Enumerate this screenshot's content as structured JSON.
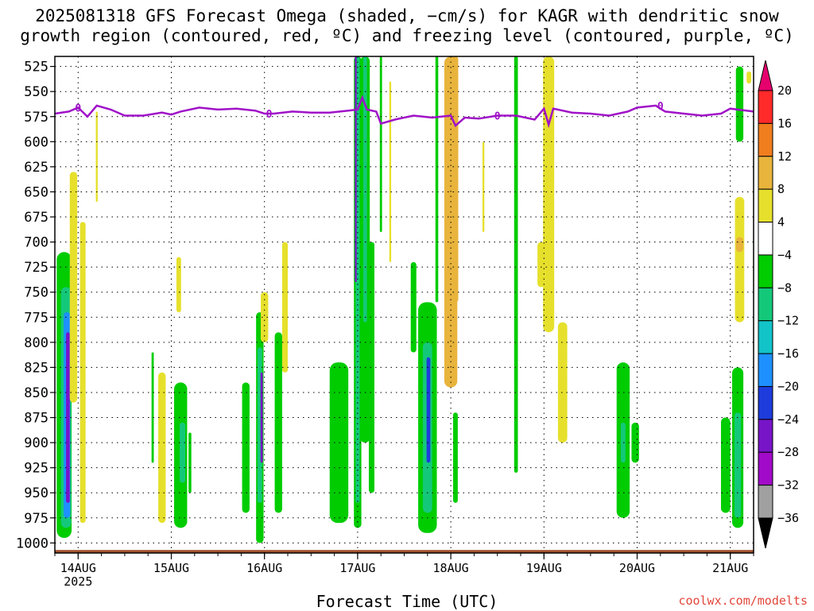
{
  "chart_data": {
    "type": "heatmap",
    "title": "2025081318 GFS Forecast Omega (shaded, −cm/s) for KAGR with dendritic snow\ngrowth region (contoured, red, ºC) and freezing level (contoured, purple, ºC)",
    "xlabel": "Forecast Time (UTC)",
    "ylabel": "",
    "credit": "coolwx.com/modelts",
    "x_ticks": [
      "14AUG",
      "15AUG",
      "16AUG",
      "17AUG",
      "18AUG",
      "19AUG",
      "20AUG",
      "21AUG"
    ],
    "x_tick_year": "2025",
    "x_range_days": [
      13.75,
      21.25
    ],
    "y_ticks": [
      525,
      550,
      575,
      600,
      625,
      650,
      675,
      700,
      725,
      750,
      775,
      800,
      825,
      850,
      875,
      900,
      925,
      950,
      975,
      1000
    ],
    "ylim": [
      1010,
      515
    ],
    "colorbar": {
      "labels": [
        "20",
        "16",
        "12",
        "8",
        "4",
        "−4",
        "−8",
        "−12",
        "−16",
        "−20",
        "−24",
        "−28",
        "−32",
        "−36"
      ],
      "colors": [
        "#ff2a2a",
        "#f07d1e",
        "#e8b43c",
        "#e6e02c",
        "#ffffff",
        "#00cc00",
        "#14c87a",
        "#12c3c8",
        "#1e90ff",
        "#1e3cdc",
        "#7814c8",
        "#a00ac8",
        "#a0a0a0"
      ],
      "top_arrow_color": "#e6006e",
      "bottom_arrow_color": "#000000"
    },
    "freezing_level_label": "0",
    "freezing_level": {
      "x": [
        13.75,
        13.9,
        14.0,
        14.1,
        14.2,
        14.35,
        14.5,
        14.7,
        14.9,
        15.0,
        15.1,
        15.3,
        15.5,
        15.7,
        15.9,
        16.0,
        16.1,
        16.3,
        16.5,
        16.7,
        16.9,
        17.0,
        17.05,
        17.1,
        17.2,
        17.25,
        17.4,
        17.6,
        17.8,
        18.0,
        18.05,
        18.15,
        18.3,
        18.5,
        18.7,
        18.9,
        19.0,
        19.05,
        19.1,
        19.3,
        19.5,
        19.7,
        19.9,
        20.0,
        20.2,
        20.3,
        20.5,
        20.7,
        20.9,
        21.0,
        21.25
      ],
      "y": [
        572,
        570,
        566,
        575,
        564,
        568,
        574,
        574,
        571,
        573,
        570,
        566,
        568,
        567,
        569,
        572,
        572,
        570,
        571,
        571,
        569,
        568,
        556,
        568,
        570,
        582,
        578,
        574,
        576,
        574,
        584,
        576,
        577,
        574,
        574,
        578,
        567,
        583,
        567,
        571,
        572,
        574,
        570,
        566,
        564,
        570,
        572,
        574,
        572,
        567,
        570
      ]
    },
    "omega_features": [
      {
        "day": 13.85,
        "p_top": 710,
        "p_bot": 995,
        "half_width_days": 0.08,
        "value": -8
      },
      {
        "day": 13.87,
        "p_top": 745,
        "p_bot": 985,
        "half_width_days": 0.055,
        "value": -12
      },
      {
        "day": 13.88,
        "p_top": 770,
        "p_bot": 975,
        "half_width_days": 0.035,
        "value": -16
      },
      {
        "day": 13.89,
        "p_top": 790,
        "p_bot": 960,
        "half_width_days": 0.02,
        "value": -28
      },
      {
        "day": 13.95,
        "p_top": 630,
        "p_bot": 860,
        "half_width_days": 0.04,
        "value": 4
      },
      {
        "day": 14.05,
        "p_top": 680,
        "p_bot": 980,
        "half_width_days": 0.03,
        "value": 4
      },
      {
        "day": 14.2,
        "p_top": 570,
        "p_bot": 660,
        "half_width_days": 0.01,
        "value": 4
      },
      {
        "day": 14.8,
        "p_top": 810,
        "p_bot": 920,
        "half_width_days": 0.012,
        "value": -8
      },
      {
        "day": 14.9,
        "p_top": 830,
        "p_bot": 980,
        "half_width_days": 0.04,
        "value": 4
      },
      {
        "day": 15.08,
        "p_top": 715,
        "p_bot": 770,
        "half_width_days": 0.025,
        "value": 4
      },
      {
        "day": 15.1,
        "p_top": 840,
        "p_bot": 985,
        "half_width_days": 0.07,
        "value": -8
      },
      {
        "day": 15.12,
        "p_top": 880,
        "p_bot": 940,
        "half_width_days": 0.03,
        "value": -12
      },
      {
        "day": 15.2,
        "p_top": 890,
        "p_bot": 950,
        "half_width_days": 0.015,
        "value": -8
      },
      {
        "day": 15.8,
        "p_top": 840,
        "p_bot": 970,
        "half_width_days": 0.04,
        "value": -8
      },
      {
        "day": 15.95,
        "p_top": 770,
        "p_bot": 1000,
        "half_width_days": 0.04,
        "value": -8
      },
      {
        "day": 15.95,
        "p_top": 805,
        "p_bot": 960,
        "half_width_days": 0.025,
        "value": -12
      },
      {
        "day": 15.97,
        "p_top": 830,
        "p_bot": 920,
        "half_width_days": 0.012,
        "value": -24
      },
      {
        "day": 16.0,
        "p_top": 750,
        "p_bot": 800,
        "half_width_days": 0.04,
        "value": 4
      },
      {
        "day": 16.15,
        "p_top": 790,
        "p_bot": 970,
        "half_width_days": 0.04,
        "value": -8
      },
      {
        "day": 16.22,
        "p_top": 700,
        "p_bot": 830,
        "half_width_days": 0.03,
        "value": 4
      },
      {
        "day": 16.8,
        "p_top": 820,
        "p_bot": 980,
        "half_width_days": 0.1,
        "value": -8
      },
      {
        "day": 17.0,
        "p_top": 515,
        "p_bot": 985,
        "half_width_days": 0.04,
        "value": -8
      },
      {
        "day": 17.0,
        "p_top": 515,
        "p_bot": 960,
        "half_width_days": 0.022,
        "value": -12
      },
      {
        "day": 16.98,
        "p_top": 515,
        "p_bot": 740,
        "half_width_days": 0.01,
        "value": -24
      },
      {
        "day": 17.08,
        "p_top": 515,
        "p_bot": 900,
        "half_width_days": 0.05,
        "value": -8
      },
      {
        "day": 17.08,
        "p_top": 515,
        "p_bot": 780,
        "half_width_days": 0.02,
        "value": -12
      },
      {
        "day": 17.15,
        "p_top": 700,
        "p_bot": 950,
        "half_width_days": 0.03,
        "value": -8
      },
      {
        "day": 17.25,
        "p_top": 515,
        "p_bot": 690,
        "half_width_days": 0.012,
        "value": -8
      },
      {
        "day": 17.35,
        "p_top": 540,
        "p_bot": 720,
        "half_width_days": 0.01,
        "value": 4
      },
      {
        "day": 17.6,
        "p_top": 720,
        "p_bot": 810,
        "half_width_days": 0.03,
        "value": -8
      },
      {
        "day": 17.75,
        "p_top": 760,
        "p_bot": 990,
        "half_width_days": 0.1,
        "value": -8
      },
      {
        "day": 17.75,
        "p_top": 800,
        "p_bot": 970,
        "half_width_days": 0.05,
        "value": -12
      },
      {
        "day": 17.76,
        "p_top": 815,
        "p_bot": 920,
        "half_width_days": 0.02,
        "value": -20
      },
      {
        "day": 17.85,
        "p_top": 515,
        "p_bot": 760,
        "half_width_days": 0.015,
        "value": -8
      },
      {
        "day": 18.0,
        "p_top": 515,
        "p_bot": 845,
        "half_width_days": 0.07,
        "value": 8
      },
      {
        "day": 18.05,
        "p_top": 515,
        "p_bot": 760,
        "half_width_days": 0.03,
        "value": 12
      },
      {
        "day": 18.05,
        "p_top": 870,
        "p_bot": 960,
        "half_width_days": 0.025,
        "value": -8
      },
      {
        "day": 18.35,
        "p_top": 600,
        "p_bot": 690,
        "half_width_days": 0.01,
        "value": 4
      },
      {
        "day": 18.7,
        "p_top": 515,
        "p_bot": 930,
        "half_width_days": 0.02,
        "value": -8
      },
      {
        "day": 18.97,
        "p_top": 700,
        "p_bot": 745,
        "half_width_days": 0.04,
        "value": 4
      },
      {
        "day": 19.05,
        "p_top": 515,
        "p_bot": 790,
        "half_width_days": 0.06,
        "value": 4
      },
      {
        "day": 19.2,
        "p_top": 780,
        "p_bot": 900,
        "half_width_days": 0.05,
        "value": 4
      },
      {
        "day": 19.85,
        "p_top": 820,
        "p_bot": 975,
        "half_width_days": 0.07,
        "value": -8
      },
      {
        "day": 19.85,
        "p_top": 880,
        "p_bot": 920,
        "half_width_days": 0.025,
        "value": -12
      },
      {
        "day": 19.98,
        "p_top": 880,
        "p_bot": 920,
        "half_width_days": 0.04,
        "value": -8
      },
      {
        "day": 20.95,
        "p_top": 875,
        "p_bot": 970,
        "half_width_days": 0.05,
        "value": -8
      },
      {
        "day": 21.08,
        "p_top": 825,
        "p_bot": 985,
        "half_width_days": 0.06,
        "value": -8
      },
      {
        "day": 21.08,
        "p_top": 870,
        "p_bot": 975,
        "half_width_days": 0.035,
        "value": -12
      },
      {
        "day": 21.1,
        "p_top": 525,
        "p_bot": 600,
        "half_width_days": 0.04,
        "value": -8
      },
      {
        "day": 21.1,
        "p_top": 655,
        "p_bot": 780,
        "half_width_days": 0.05,
        "value": 4
      },
      {
        "day": 21.1,
        "p_top": 695,
        "p_bot": 710,
        "half_width_days": 0.04,
        "value": 8
      },
      {
        "day": 21.2,
        "p_top": 530,
        "p_bot": 542,
        "half_width_days": 0.025,
        "value": 4
      }
    ],
    "surface_pressure": 1007,
    "legend": "right (colorbar)",
    "grid": true
  }
}
